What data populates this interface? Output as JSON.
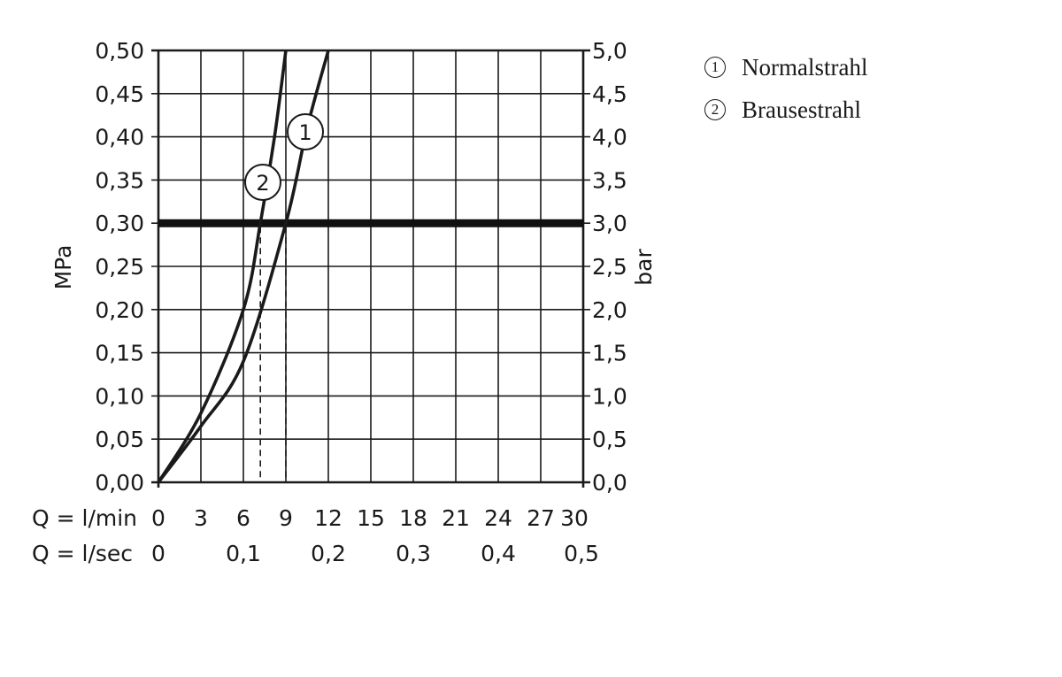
{
  "chart_data": {
    "type": "line",
    "y_left": {
      "label": "MPa",
      "ylim": [
        0,
        0.5
      ],
      "ticks": [
        0,
        0.05,
        0.1,
        0.15,
        0.2,
        0.25,
        0.3,
        0.35,
        0.4,
        0.45,
        0.5
      ],
      "tick_labels": [
        "0,00",
        "0,05",
        "0,10",
        "0,15",
        "0,20",
        "0,25",
        "0,30",
        "0,35",
        "0,40",
        "0,45",
        "0,50"
      ]
    },
    "y_right": {
      "label": "bar",
      "ylim": [
        0,
        5
      ],
      "tick_labels": [
        "0,0",
        "0,5",
        "1,0",
        "1,5",
        "2,0",
        "2,5",
        "3,0",
        "3,5",
        "4,0",
        "4,5",
        "5,0"
      ]
    },
    "x_lmin": {
      "label": "Q = l/min",
      "xlim": [
        0,
        30
      ],
      "ticks": [
        0,
        3,
        6,
        9,
        12,
        15,
        18,
        21,
        24,
        27,
        30
      ],
      "tick_labels": [
        "0",
        "3",
        "6",
        "9",
        "12",
        "15",
        "18",
        "21",
        "24",
        "27",
        "30"
      ]
    },
    "x_lsec": {
      "label": "Q = l/sec",
      "ticks": [
        0,
        0.1,
        0.2,
        0.3,
        0.4,
        0.5
      ],
      "tick_labels": [
        "0",
        "0,1",
        "0,2",
        "0,3",
        "0,4",
        "0,5"
      ]
    },
    "grid": true,
    "reference_line": {
      "y": 0.3
    },
    "series": [
      {
        "marker": "1",
        "name": "Normalstrahl",
        "x": [
          0,
          3,
          6,
          9,
          10.5,
          12
        ],
        "y": [
          0,
          0.065,
          0.14,
          0.3,
          0.41,
          0.5
        ],
        "drop_x": 9
      },
      {
        "marker": "2",
        "name": "Brausestrahl",
        "x": [
          0,
          3,
          6,
          7.2,
          8.2,
          9
        ],
        "y": [
          0,
          0.08,
          0.2,
          0.3,
          0.4,
          0.5
        ],
        "drop_x": 7.2
      }
    ]
  },
  "legend": {
    "items": [
      {
        "num": "1",
        "label": "Normalstrahl"
      },
      {
        "num": "2",
        "label": "Brausestrahl"
      }
    ]
  }
}
